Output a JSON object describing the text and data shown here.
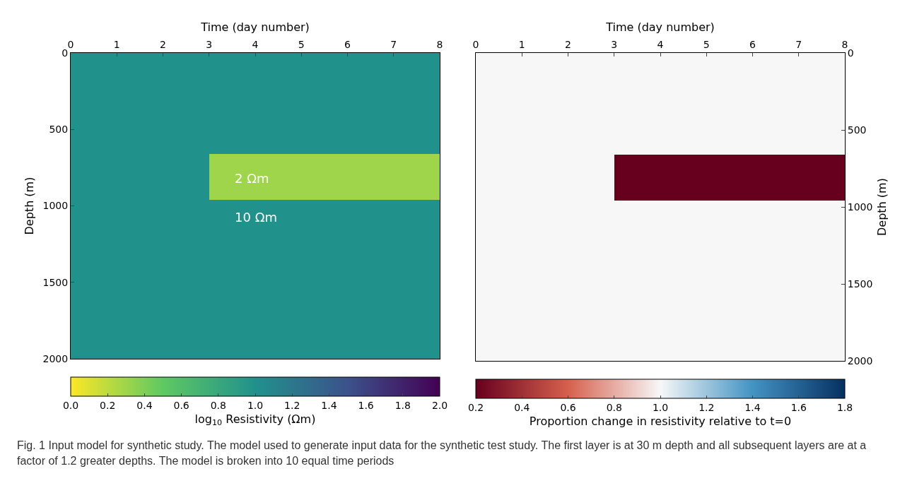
{
  "chart_data": [
    {
      "type": "heatmap",
      "xlabel": "Time (day number)",
      "ylabel": "Depth (m)",
      "clabel": "log$_{10}$ Resistivity (Ωm)",
      "cells": [
        [
          1,
          1,
          1,
          1,
          1,
          1,
          1,
          1
        ],
        [
          1,
          1,
          1,
          1,
          1,
          1,
          1,
          1
        ],
        [
          1,
          1,
          1,
          1,
          1,
          1,
          1,
          1
        ],
        [
          1,
          1,
          1,
          1,
          1,
          1,
          1,
          1
        ],
        [
          1,
          1,
          1,
          1,
          1,
          1,
          1,
          1
        ],
        [
          1,
          1,
          1,
          1,
          1,
          1,
          1,
          1
        ],
        [
          1,
          1,
          1,
          1,
          1,
          1,
          1,
          1
        ],
        [
          1,
          1,
          1,
          1,
          1,
          1,
          1,
          1
        ],
        [
          1,
          1,
          1,
          1,
          1,
          1,
          1,
          1
        ],
        [
          1,
          1,
          1,
          1,
          1,
          1,
          1,
          1
        ],
        [
          1,
          1,
          1,
          1,
          1,
          1,
          1,
          1
        ],
        [
          1,
          1,
          1,
          1,
          1,
          1,
          1,
          1
        ],
        [
          1,
          1,
          1,
          1,
          1,
          1,
          1,
          1
        ],
        [
          1,
          1,
          1,
          1,
          1,
          1,
          1,
          1
        ],
        [
          1,
          1,
          1,
          1,
          1,
          1,
          1,
          1
        ],
        [
          1,
          1,
          1,
          1,
          1,
          1,
          1,
          1
        ],
        [
          1,
          1,
          1,
          1,
          1,
          1,
          1,
          1
        ],
        [
          1,
          1,
          1,
          1,
          1,
          1,
          1,
          1
        ],
        [
          1,
          1,
          1,
          1,
          1,
          1,
          1,
          1
        ],
        [
          1,
          1,
          1,
          1,
          1,
          1,
          1,
          1
        ],
        [
          1,
          1,
          1,
          1,
          1,
          1,
          1,
          1
        ],
        [
          1,
          1,
          1,
          1,
          1,
          1,
          1,
          1
        ],
        [
          1,
          1,
          1,
          1,
          1,
          1,
          1,
          1
        ],
        [
          1,
          1,
          1,
          1,
          1,
          1,
          1,
          1
        ],
        [
          1,
          1,
          1,
          1,
          1,
          1,
          1,
          1
        ],
        [
          1,
          1,
          1,
          1,
          1,
          1,
          1,
          1
        ],
        [
          1,
          1,
          1,
          1,
          1,
          1,
          1,
          1
        ],
        [
          1,
          1,
          1,
          1,
          1,
          1,
          1,
          1
        ],
        [
          1,
          1,
          1,
          1,
          1,
          1,
          1,
          1
        ],
        [
          1,
          1,
          1,
          1,
          1,
          1,
          1,
          1
        ],
        [
          1,
          1,
          1,
          1,
          1,
          1,
          1,
          1
        ],
        [
          1,
          1,
          1,
          1,
          1,
          1,
          1,
          1
        ],
        [
          1,
          1,
          1,
          1,
          1,
          1,
          1,
          1
        ],
        [
          1,
          1,
          1,
          0.3,
          0.3,
          0.3,
          0.3,
          0.3
        ],
        [
          1,
          1,
          1,
          0.3,
          0.3,
          0.3,
          0.3,
          0.3
        ],
        [
          1,
          1,
          1,
          0.3,
          0.3,
          0.3,
          0.3,
          0.3
        ],
        [
          1,
          1,
          1,
          0.3,
          0.3,
          0.3,
          0.3,
          0.3
        ],
        [
          1,
          1,
          1,
          0.3,
          0.3,
          0.3,
          0.3,
          0.3
        ],
        [
          1,
          1,
          1,
          0.3,
          0.3,
          0.3,
          0.3,
          0.3
        ],
        [
          1,
          1,
          1,
          0.3,
          0.3,
          0.3,
          0.3,
          0.3
        ],
        [
          1,
          1,
          1,
          0.3,
          0.3,
          0.3,
          0.3,
          0.3
        ],
        [
          1,
          1,
          1,
          0.3,
          0.3,
          0.3,
          0.3,
          0.3
        ],
        [
          1,
          1,
          1,
          0.3,
          0.3,
          0.3,
          0.3,
          0.3
        ],
        [
          1,
          1,
          1,
          0.3,
          0.3,
          0.3,
          0.3,
          0.3
        ],
        [
          1,
          1,
          1,
          0.3,
          0.3,
          0.3,
          0.3,
          0.3
        ],
        [
          1,
          1,
          1,
          0.3,
          0.3,
          0.3,
          0.3,
          0.3
        ],
        [
          1,
          1,
          1,
          0.3,
          0.3,
          0.3,
          0.3,
          0.3
        ],
        [
          1,
          1,
          1,
          0.3,
          0.3,
          0.3,
          0.3,
          0.3
        ],
        [
          1,
          1,
          1,
          1,
          1,
          1,
          1,
          1
        ],
        [
          1,
          1,
          1,
          1,
          1,
          1,
          1,
          1
        ],
        [
          1,
          1,
          1,
          1,
          1,
          1,
          1,
          1
        ],
        [
          1,
          1,
          1,
          1,
          1,
          1,
          1,
          1
        ],
        [
          1,
          1,
          1,
          1,
          1,
          1,
          1,
          1
        ],
        [
          1,
          1,
          1,
          1,
          1,
          1,
          1,
          1
        ],
        [
          1,
          1,
          1,
          1,
          1,
          1,
          1,
          1
        ],
        [
          1,
          1,
          1,
          1,
          1,
          1,
          1,
          1
        ],
        [
          1,
          1,
          1,
          1,
          1,
          1,
          1,
          1
        ],
        [
          1,
          1,
          1,
          1,
          1,
          1,
          1,
          1
        ],
        [
          1,
          1,
          1,
          1,
          1,
          1,
          1,
          1
        ],
        [
          1,
          1,
          1,
          1,
          1,
          1,
          1,
          1
        ],
        [
          1,
          1,
          1,
          1,
          1,
          1,
          1,
          1
        ],
        [
          1,
          1,
          1,
          1,
          1,
          1,
          1,
          1
        ],
        [
          1,
          1,
          1,
          1,
          1,
          1,
          1,
          1
        ],
        [
          1,
          1,
          1,
          1,
          1,
          1,
          1,
          1
        ],
        [
          1,
          1,
          1,
          1,
          1,
          1,
          1,
          1
        ],
        [
          1,
          1,
          1,
          1,
          1,
          1,
          1,
          1
        ],
        [
          1,
          1,
          1,
          1,
          1,
          1,
          1,
          1
        ],
        [
          1,
          1,
          1,
          1,
          1,
          1,
          1,
          1
        ],
        [
          1,
          1,
          1,
          1,
          1,
          1,
          1,
          1
        ],
        [
          1,
          1,
          1,
          1,
          1,
          1,
          1,
          1
        ],
        [
          1,
          1,
          1,
          1,
          1,
          1,
          1,
          1
        ],
        [
          1,
          1,
          1,
          1,
          1,
          1,
          1,
          1
        ],
        [
          1,
          1,
          1,
          1,
          1,
          1,
          1,
          1
        ],
        [
          1,
          1,
          1,
          1,
          1,
          1,
          1,
          1
        ],
        [
          1,
          1,
          1,
          1,
          1,
          1,
          1,
          1
        ],
        [
          1,
          1,
          1,
          1,
          1,
          1,
          1,
          1
        ],
        [
          1,
          1,
          1,
          1,
          1,
          1,
          1,
          1
        ],
        [
          1,
          1,
          1,
          1,
          1,
          1,
          1,
          1
        ],
        [
          1,
          1,
          1,
          1,
          1,
          1,
          1,
          1
        ],
        [
          1,
          1,
          1,
          1,
          1,
          1,
          1,
          1
        ],
        [
          1,
          1,
          1,
          1,
          1,
          1,
          1,
          1
        ],
        [
          1,
          1,
          1,
          1,
          1,
          1,
          1,
          1
        ],
        [
          1,
          1,
          1,
          1,
          1,
          1,
          1,
          1
        ],
        [
          1,
          1,
          1,
          1,
          1,
          1,
          1,
          1
        ],
        [
          1,
          1,
          1,
          1,
          1,
          1,
          1,
          1
        ],
        [
          1,
          1,
          1,
          1,
          1,
          1,
          1,
          1
        ],
        [
          1,
          1,
          1,
          1,
          1,
          1,
          1,
          1
        ],
        [
          1,
          1,
          1,
          1,
          1,
          1,
          1,
          1
        ],
        [
          1,
          1,
          1,
          1,
          1,
          1,
          1,
          1
        ],
        [
          1,
          1,
          1,
          1,
          1,
          1,
          1,
          1
        ],
        [
          1,
          1,
          1,
          1,
          1,
          1,
          1,
          1
        ],
        [
          1,
          1,
          1,
          1,
          1,
          1,
          1,
          1
        ],
        [
          1,
          1,
          1,
          1,
          1,
          1,
          1,
          1
        ],
        [
          1,
          1,
          1,
          1,
          1,
          1,
          1,
          1
        ],
        [
          1,
          1,
          1,
          1,
          1,
          1,
          1,
          1
        ],
        [
          1,
          1,
          1,
          1,
          1,
          1,
          1,
          1
        ],
        [
          1,
          1,
          1,
          1,
          1,
          1,
          1,
          1
        ],
        [
          1,
          1,
          1,
          1,
          1,
          1,
          1,
          1
        ],
        [
          1,
          1,
          1,
          1,
          1,
          1,
          1,
          1
        ],
        [
          1,
          1,
          1,
          1,
          1,
          1,
          1,
          1
        ]
      ],
      "colors": [
        "#fde725",
        "#5ec962",
        "#21918c",
        "#3b528b",
        "#440154"
      ],
      "xlim": [
        0,
        8
      ],
      "xticks": [
        0,
        1,
        2,
        3,
        4,
        5,
        6,
        7,
        8
      ],
      "ylim": [
        2000,
        0
      ],
      "yticks": [
        0,
        500,
        1000,
        1500,
        2000
      ],
      "clim": [
        0,
        2
      ],
      "cticks": [
        {
          "value": 0,
          "label": "0.0"
        },
        0.2,
        0.4,
        0.6,
        0.8,
        {
          "value": 1,
          "label": "1.0"
        },
        1.2,
        1.4,
        1.6,
        1.8,
        {
          "value": 2,
          "label": "2.0"
        }
      ],
      "annotations": [
        "2 Ωm",
        "10 Ωm"
      ]
    },
    {
      "type": "heatmap",
      "xlabel": "Time (day number)",
      "ylabel": "Depth (m)",
      "clabel": "Proportion change in resistivity relative to t=0",
      "cells": [
        [
          1,
          1,
          1,
          1,
          1,
          1,
          1,
          1
        ],
        [
          1,
          1,
          1,
          1,
          1,
          1,
          1,
          1
        ],
        [
          1,
          1,
          1,
          1,
          1,
          1,
          1,
          1
        ],
        [
          1,
          1,
          1,
          1,
          1,
          1,
          1,
          1
        ],
        [
          1,
          1,
          1,
          1,
          1,
          1,
          1,
          1
        ],
        [
          1,
          1,
          1,
          1,
          1,
          1,
          1,
          1
        ],
        [
          1,
          1,
          1,
          1,
          1,
          1,
          1,
          1
        ],
        [
          1,
          1,
          1,
          1,
          1,
          1,
          1,
          1
        ],
        [
          1,
          1,
          1,
          1,
          1,
          1,
          1,
          1
        ],
        [
          1,
          1,
          1,
          1,
          1,
          1,
          1,
          1
        ],
        [
          1,
          1,
          1,
          1,
          1,
          1,
          1,
          1
        ],
        [
          1,
          1,
          1,
          1,
          1,
          1,
          1,
          1
        ],
        [
          1,
          1,
          1,
          1,
          1,
          1,
          1,
          1
        ],
        [
          1,
          1,
          1,
          1,
          1,
          1,
          1,
          1
        ],
        [
          1,
          1,
          1,
          1,
          1,
          1,
          1,
          1
        ],
        [
          1,
          1,
          1,
          1,
          1,
          1,
          1,
          1
        ],
        [
          1,
          1,
          1,
          1,
          1,
          1,
          1,
          1
        ],
        [
          1,
          1,
          1,
          1,
          1,
          1,
          1,
          1
        ],
        [
          1,
          1,
          1,
          1,
          1,
          1,
          1,
          1
        ],
        [
          1,
          1,
          1,
          1,
          1,
          1,
          1,
          1
        ],
        [
          1,
          1,
          1,
          1,
          1,
          1,
          1,
          1
        ],
        [
          1,
          1,
          1,
          1,
          1,
          1,
          1,
          1
        ],
        [
          1,
          1,
          1,
          1,
          1,
          1,
          1,
          1
        ],
        [
          1,
          1,
          1,
          1,
          1,
          1,
          1,
          1
        ],
        [
          1,
          1,
          1,
          1,
          1,
          1,
          1,
          1
        ],
        [
          1,
          1,
          1,
          1,
          1,
          1,
          1,
          1
        ],
        [
          1,
          1,
          1,
          1,
          1,
          1,
          1,
          1
        ],
        [
          1,
          1,
          1,
          1,
          1,
          1,
          1,
          1
        ],
        [
          1,
          1,
          1,
          1,
          1,
          1,
          1,
          1
        ],
        [
          1,
          1,
          1,
          1,
          1,
          1,
          1,
          1
        ],
        [
          1,
          1,
          1,
          1,
          1,
          1,
          1,
          1
        ],
        [
          1,
          1,
          1,
          1,
          1,
          1,
          1,
          1
        ],
        [
          1,
          1,
          1,
          1,
          1,
          1,
          1,
          1
        ],
        [
          1,
          1,
          1,
          0.2,
          0.2,
          0.2,
          0.2,
          0.2
        ],
        [
          1,
          1,
          1,
          0.2,
          0.2,
          0.2,
          0.2,
          0.2
        ],
        [
          1,
          1,
          1,
          0.2,
          0.2,
          0.2,
          0.2,
          0.2
        ],
        [
          1,
          1,
          1,
          0.2,
          0.2,
          0.2,
          0.2,
          0.2
        ],
        [
          1,
          1,
          1,
          0.2,
          0.2,
          0.2,
          0.2,
          0.2
        ],
        [
          1,
          1,
          1,
          0.2,
          0.2,
          0.2,
          0.2,
          0.2
        ],
        [
          1,
          1,
          1,
          0.2,
          0.2,
          0.2,
          0.2,
          0.2
        ],
        [
          1,
          1,
          1,
          0.2,
          0.2,
          0.2,
          0.2,
          0.2
        ],
        [
          1,
          1,
          1,
          0.2,
          0.2,
          0.2,
          0.2,
          0.2
        ],
        [
          1,
          1,
          1,
          0.2,
          0.2,
          0.2,
          0.2,
          0.2
        ],
        [
          1,
          1,
          1,
          0.2,
          0.2,
          0.2,
          0.2,
          0.2
        ],
        [
          1,
          1,
          1,
          0.2,
          0.2,
          0.2,
          0.2,
          0.2
        ],
        [
          1,
          1,
          1,
          0.2,
          0.2,
          0.2,
          0.2,
          0.2
        ],
        [
          1,
          1,
          1,
          0.2,
          0.2,
          0.2,
          0.2,
          0.2
        ],
        [
          1,
          1,
          1,
          0.2,
          0.2,
          0.2,
          0.2,
          0.2
        ],
        [
          1,
          1,
          1,
          1,
          1,
          1,
          1,
          1
        ],
        [
          1,
          1,
          1,
          1,
          1,
          1,
          1,
          1
        ],
        [
          1,
          1,
          1,
          1,
          1,
          1,
          1,
          1
        ],
        [
          1,
          1,
          1,
          1,
          1,
          1,
          1,
          1
        ],
        [
          1,
          1,
          1,
          1,
          1,
          1,
          1,
          1
        ],
        [
          1,
          1,
          1,
          1,
          1,
          1,
          1,
          1
        ],
        [
          1,
          1,
          1,
          1,
          1,
          1,
          1,
          1
        ],
        [
          1,
          1,
          1,
          1,
          1,
          1,
          1,
          1
        ],
        [
          1,
          1,
          1,
          1,
          1,
          1,
          1,
          1
        ],
        [
          1,
          1,
          1,
          1,
          1,
          1,
          1,
          1
        ],
        [
          1,
          1,
          1,
          1,
          1,
          1,
          1,
          1
        ],
        [
          1,
          1,
          1,
          1,
          1,
          1,
          1,
          1
        ],
        [
          1,
          1,
          1,
          1,
          1,
          1,
          1,
          1
        ],
        [
          1,
          1,
          1,
          1,
          1,
          1,
          1,
          1
        ],
        [
          1,
          1,
          1,
          1,
          1,
          1,
          1,
          1
        ],
        [
          1,
          1,
          1,
          1,
          1,
          1,
          1,
          1
        ],
        [
          1,
          1,
          1,
          1,
          1,
          1,
          1,
          1
        ],
        [
          1,
          1,
          1,
          1,
          1,
          1,
          1,
          1
        ],
        [
          1,
          1,
          1,
          1,
          1,
          1,
          1,
          1
        ],
        [
          1,
          1,
          1,
          1,
          1,
          1,
          1,
          1
        ],
        [
          1,
          1,
          1,
          1,
          1,
          1,
          1,
          1
        ],
        [
          1,
          1,
          1,
          1,
          1,
          1,
          1,
          1
        ],
        [
          1,
          1,
          1,
          1,
          1,
          1,
          1,
          1
        ],
        [
          1,
          1,
          1,
          1,
          1,
          1,
          1,
          1
        ],
        [
          1,
          1,
          1,
          1,
          1,
          1,
          1,
          1
        ],
        [
          1,
          1,
          1,
          1,
          1,
          1,
          1,
          1
        ],
        [
          1,
          1,
          1,
          1,
          1,
          1,
          1,
          1
        ],
        [
          1,
          1,
          1,
          1,
          1,
          1,
          1,
          1
        ],
        [
          1,
          1,
          1,
          1,
          1,
          1,
          1,
          1
        ],
        [
          1,
          1,
          1,
          1,
          1,
          1,
          1,
          1
        ],
        [
          1,
          1,
          1,
          1,
          1,
          1,
          1,
          1
        ],
        [
          1,
          1,
          1,
          1,
          1,
          1,
          1,
          1
        ],
        [
          1,
          1,
          1,
          1,
          1,
          1,
          1,
          1
        ],
        [
          1,
          1,
          1,
          1,
          1,
          1,
          1,
          1
        ],
        [
          1,
          1,
          1,
          1,
          1,
          1,
          1,
          1
        ],
        [
          1,
          1,
          1,
          1,
          1,
          1,
          1,
          1
        ],
        [
          1,
          1,
          1,
          1,
          1,
          1,
          1,
          1
        ],
        [
          1,
          1,
          1,
          1,
          1,
          1,
          1,
          1
        ],
        [
          1,
          1,
          1,
          1,
          1,
          1,
          1,
          1
        ],
        [
          1,
          1,
          1,
          1,
          1,
          1,
          1,
          1
        ],
        [
          1,
          1,
          1,
          1,
          1,
          1,
          1,
          1
        ],
        [
          1,
          1,
          1,
          1,
          1,
          1,
          1,
          1
        ],
        [
          1,
          1,
          1,
          1,
          1,
          1,
          1,
          1
        ],
        [
          1,
          1,
          1,
          1,
          1,
          1,
          1,
          1
        ],
        [
          1,
          1,
          1,
          1,
          1,
          1,
          1,
          1
        ],
        [
          1,
          1,
          1,
          1,
          1,
          1,
          1,
          1
        ],
        [
          1,
          1,
          1,
          1,
          1,
          1,
          1,
          1
        ],
        [
          1,
          1,
          1,
          1,
          1,
          1,
          1,
          1
        ],
        [
          1,
          1,
          1,
          1,
          1,
          1,
          1,
          1
        ],
        [
          1,
          1,
          1,
          1,
          1,
          1,
          1,
          1
        ],
        [
          1,
          1,
          1,
          1,
          1,
          1,
          1,
          1
        ],
        [
          1,
          1,
          1,
          1,
          1,
          1,
          1,
          1
        ]
      ],
      "colors": [
        "#67001f",
        "#d6604d",
        "#f7f7f7",
        "#4393c3",
        "#053061"
      ],
      "xlim": [
        0,
        8
      ],
      "xticks": [
        0,
        1,
        2,
        3,
        4,
        5,
        6,
        7,
        8
      ],
      "ylim": [
        2000,
        0
      ],
      "yticks": [
        0,
        500,
        1000,
        1500,
        2000
      ],
      "clim": [
        0.2,
        1.8
      ],
      "cticks": [
        0.2,
        0.4,
        0.6,
        0.8,
        {
          "value": 1,
          "label": "1.0"
        },
        1.2,
        1.4,
        1.6,
        1.8
      ],
      "annotations": [
        "Fig. 1  Input model for synthetic study. The model used to generate input data for the synthetic test study. The first layer is at 30 m depth and all subsequent layers are at a factor of 1.2 greater depths. The model is broken into 10 equal time periods"
      ]
    }
  ]
}
